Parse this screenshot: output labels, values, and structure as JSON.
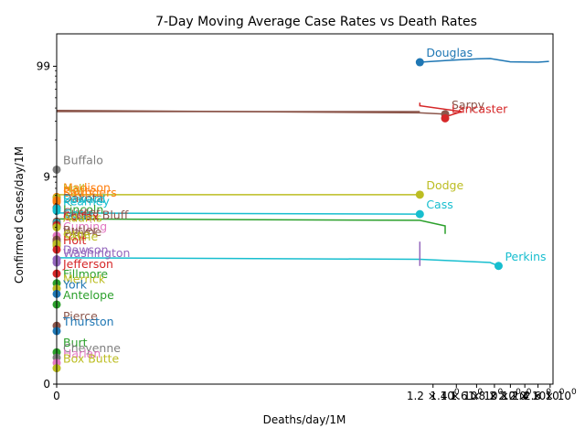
{
  "chart_data": {
    "type": "line",
    "title": "7-Day Moving Average Case Rates vs Death Rates",
    "xlabel": "Deaths/day/1M",
    "ylabel": "Confirmed Cases/day/1M",
    "x_scale": "symlog",
    "y_scale": "symlog",
    "xlim": [
      0,
      2.65
    ],
    "ylim": [
      0,
      200
    ],
    "x_ticks": [
      {
        "value": 0,
        "label": "0"
      },
      {
        "value": 1.2,
        "label": "1.2 × 10^0"
      },
      {
        "value": 1.4,
        "label": "1.4 × 10^0"
      },
      {
        "value": 1.6,
        "label": "1.6 × 10^0"
      },
      {
        "value": 1.8,
        "label": "1.8 × 10^0"
      },
      {
        "value": 2.0,
        "label": "2 × 10^0"
      },
      {
        "value": 2.2,
        "label": "2.2 × 10^0"
      },
      {
        "value": 2.4,
        "label": "2.4 × 10^0"
      },
      {
        "value": 2.6,
        "label": "2.6 × 10^0"
      }
    ],
    "y_ticks": [
      {
        "value": 0,
        "label": "0"
      },
      {
        "value": 9,
        "label": "9"
      },
      {
        "value": 99,
        "label": "99"
      }
    ],
    "grid": false,
    "legend": "none",
    "series": [
      {
        "name": "Douglas",
        "color": "#1f77b4",
        "points": [
          [
            2.58,
            110
          ],
          [
            2.4,
            108
          ],
          [
            2.0,
            109
          ],
          [
            1.75,
            117
          ],
          [
            1.6,
            116
          ],
          [
            1.3,
            112
          ],
          [
            1.1,
            108
          ]
        ],
        "marker": [
          1.1,
          108
        ]
      },
      {
        "name": "Sarpy",
        "color": "#8c564b",
        "points": [
          [
            0,
            38
          ],
          [
            1.1,
            36
          ],
          [
            1.3,
            35
          ]
        ],
        "marker": [
          1.3,
          35
        ]
      },
      {
        "name": "Lancaster",
        "color": "#d62728",
        "points": [
          [
            1.1,
            45
          ],
          [
            1.1,
            42
          ],
          [
            1.45,
            37
          ],
          [
            1.3,
            33
          ],
          [
            1.3,
            32
          ]
        ],
        "marker": [
          1.3,
          32
        ]
      },
      {
        "name": "Buffalo",
        "color": "#7f7f7f",
        "points": [
          [
            0,
            10.5
          ]
        ],
        "marker": [
          0,
          10.5
        ]
      },
      {
        "name": "Dodge",
        "color": "#bcbd22",
        "points": [
          [
            0,
            6.1
          ],
          [
            1.1,
            6.1
          ]
        ],
        "marker": [
          1.1,
          6.1
        ]
      },
      {
        "name": "Madison",
        "color": "#ff7f0e",
        "points": [
          [
            0,
            5.8
          ]
        ],
        "marker": [
          0,
          5.8
        ]
      },
      {
        "name": "Hall",
        "color": "#bcbd22",
        "points": [
          [
            0,
            5.7
          ]
        ],
        "marker": [
          0,
          5.7
        ]
      },
      {
        "name": "Platte",
        "color": "#ff7f0e",
        "points": [
          [
            0,
            5.4
          ]
        ],
        "marker": [
          0,
          5.4
        ]
      },
      {
        "name": "Saunders",
        "color": "#ff7f0e",
        "points": [
          [
            0,
            5.2
          ]
        ],
        "marker": [
          0,
          5.2
        ]
      },
      {
        "name": "Dakota",
        "color": "#8c564b",
        "points": [
          [
            0,
            4.6
          ]
        ],
        "marker": [
          0,
          4.6
        ]
      },
      {
        "name": "Seward",
        "color": "#17becf",
        "points": [
          [
            0,
            4.5
          ]
        ],
        "marker": [
          0,
          4.5
        ]
      },
      {
        "name": "Kearney",
        "color": "#17becf",
        "points": [
          [
            0,
            4.3
          ]
        ],
        "marker": [
          0,
          4.3
        ]
      },
      {
        "name": "Cass",
        "color": "#17becf",
        "points": [
          [
            0,
            4.1
          ],
          [
            1.1,
            4.0
          ]
        ],
        "marker": [
          1.1,
          4.0
        ]
      },
      {
        "name": "Lincoln",
        "color": "#2ca02c",
        "points": [
          [
            0,
            3.6
          ],
          [
            1.1,
            3.5
          ],
          [
            1.3,
            3.1
          ],
          [
            1.3,
            2.6
          ]
        ],
        "marker": null
      },
      {
        "name": "Custer",
        "color": "#8c564b",
        "points": [
          [
            0,
            3.4
          ]
        ],
        "marker": [
          0,
          3.4
        ]
      },
      {
        "name": "Gage",
        "color": "#17becf",
        "points": [
          [
            0,
            3.3
          ]
        ],
        "marker": [
          0,
          3.3
        ]
      },
      {
        "name": "Scotts Bluff",
        "color": "#8c564b",
        "points": [
          [
            0,
            3.2
          ]
        ],
        "marker": [
          0,
          3.2
        ]
      },
      {
        "name": "Colfax",
        "color": "#d62728",
        "points": [
          [
            0,
            3.1
          ]
        ],
        "marker": [
          0,
          3.1
        ]
      },
      {
        "name": "Adams",
        "color": "#bcbd22",
        "points": [
          [
            0,
            3.0
          ]
        ],
        "marker": [
          0,
          3.0
        ]
      },
      {
        "name": "Cuming",
        "color": "#e377c2",
        "points": [
          [
            0,
            2.5
          ]
        ],
        "marker": [
          0,
          2.5
        ]
      },
      {
        "name": "Butler",
        "color": "#8c564b",
        "points": [
          [
            0,
            2.3
          ]
        ],
        "marker": [
          0,
          2.3
        ]
      },
      {
        "name": "Wayne",
        "color": "#8c564b",
        "points": [
          [
            0,
            2.2
          ]
        ],
        "marker": [
          0,
          2.2
        ]
      },
      {
        "name": "Otoe",
        "color": "#bcbd22",
        "points": [
          [
            0,
            2.1
          ]
        ],
        "marker": [
          0,
          2.1
        ]
      },
      {
        "name": "Saline",
        "color": "#bcbd22",
        "points": [
          [
            0,
            2.0
          ]
        ],
        "marker": [
          0,
          2.0
        ]
      },
      {
        "name": "Holt",
        "color": "#d62728",
        "points": [
          [
            0,
            1.85
          ]
        ],
        "marker": [
          0,
          1.85
        ]
      },
      {
        "name": "Perkins",
        "color": "#17becf",
        "points": [
          [
            0,
            1.55
          ],
          [
            1.1,
            1.5
          ],
          [
            1.75,
            1.4
          ],
          [
            1.85,
            1.3
          ]
        ],
        "marker": [
          1.85,
          1.3
        ]
      },
      {
        "name": "Dawson",
        "color": "#9467bd",
        "points": [
          [
            0,
            1.5
          ]
        ],
        "marker": [
          0,
          1.5
        ]
      },
      {
        "name": "Washington",
        "color": "#9467bd",
        "points": [
          [
            0,
            1.4
          ]
        ],
        "marker": [
          0,
          1.4
        ]
      },
      {
        "name": "Jefferson",
        "color": "#d62728",
        "points": [
          [
            0,
            1.1
          ]
        ],
        "marker": [
          0,
          1.1
        ]
      },
      {
        "name": "Fillmore",
        "color": "#2ca02c",
        "points": [
          [
            0,
            0.95
          ]
        ],
        "marker": [
          0,
          0.95
        ]
      },
      {
        "name": "Merrick",
        "color": "#bcbd22",
        "points": [
          [
            0,
            0.9
          ]
        ],
        "marker": [
          0,
          0.9
        ]
      },
      {
        "name": "York",
        "color": "#1f77b4",
        "points": [
          [
            0,
            0.85
          ]
        ],
        "marker": [
          0,
          0.85
        ]
      },
      {
        "name": "Antelope",
        "color": "#2ca02c",
        "points": [
          [
            0,
            0.75
          ]
        ],
        "marker": [
          0,
          0.75
        ]
      },
      {
        "name": "Pierce",
        "color": "#8c564b",
        "points": [
          [
            0,
            0.55
          ]
        ],
        "marker": [
          0,
          0.55
        ]
      },
      {
        "name": "Thurston",
        "color": "#1f77b4",
        "points": [
          [
            0,
            0.5
          ]
        ],
        "marker": [
          0,
          0.5
        ]
      },
      {
        "name": "Burt",
        "color": "#2ca02c",
        "points": [
          [
            0,
            0.3
          ]
        ],
        "marker": [
          0,
          0.3
        ]
      },
      {
        "name": "Cheyenne",
        "color": "#7f7f7f",
        "points": [
          [
            0,
            0.25
          ]
        ],
        "marker": [
          0,
          0.25
        ]
      },
      {
        "name": "Harlan",
        "color": "#e377c2",
        "points": [
          [
            0,
            0.2
          ]
        ],
        "marker": [
          0,
          0.2
        ]
      },
      {
        "name": "Box Butte",
        "color": "#bcbd22",
        "points": [
          [
            0,
            0.15
          ]
        ],
        "marker": [
          0,
          0.15
        ]
      }
    ],
    "extra_segments": [
      {
        "color": "#9467bd",
        "points": [
          [
            1.1,
            2.2
          ],
          [
            1.1,
            1.3
          ]
        ]
      },
      {
        "color": "#8c564b",
        "points": [
          [
            0,
            37
          ],
          [
            1.1,
            37
          ]
        ]
      }
    ]
  }
}
